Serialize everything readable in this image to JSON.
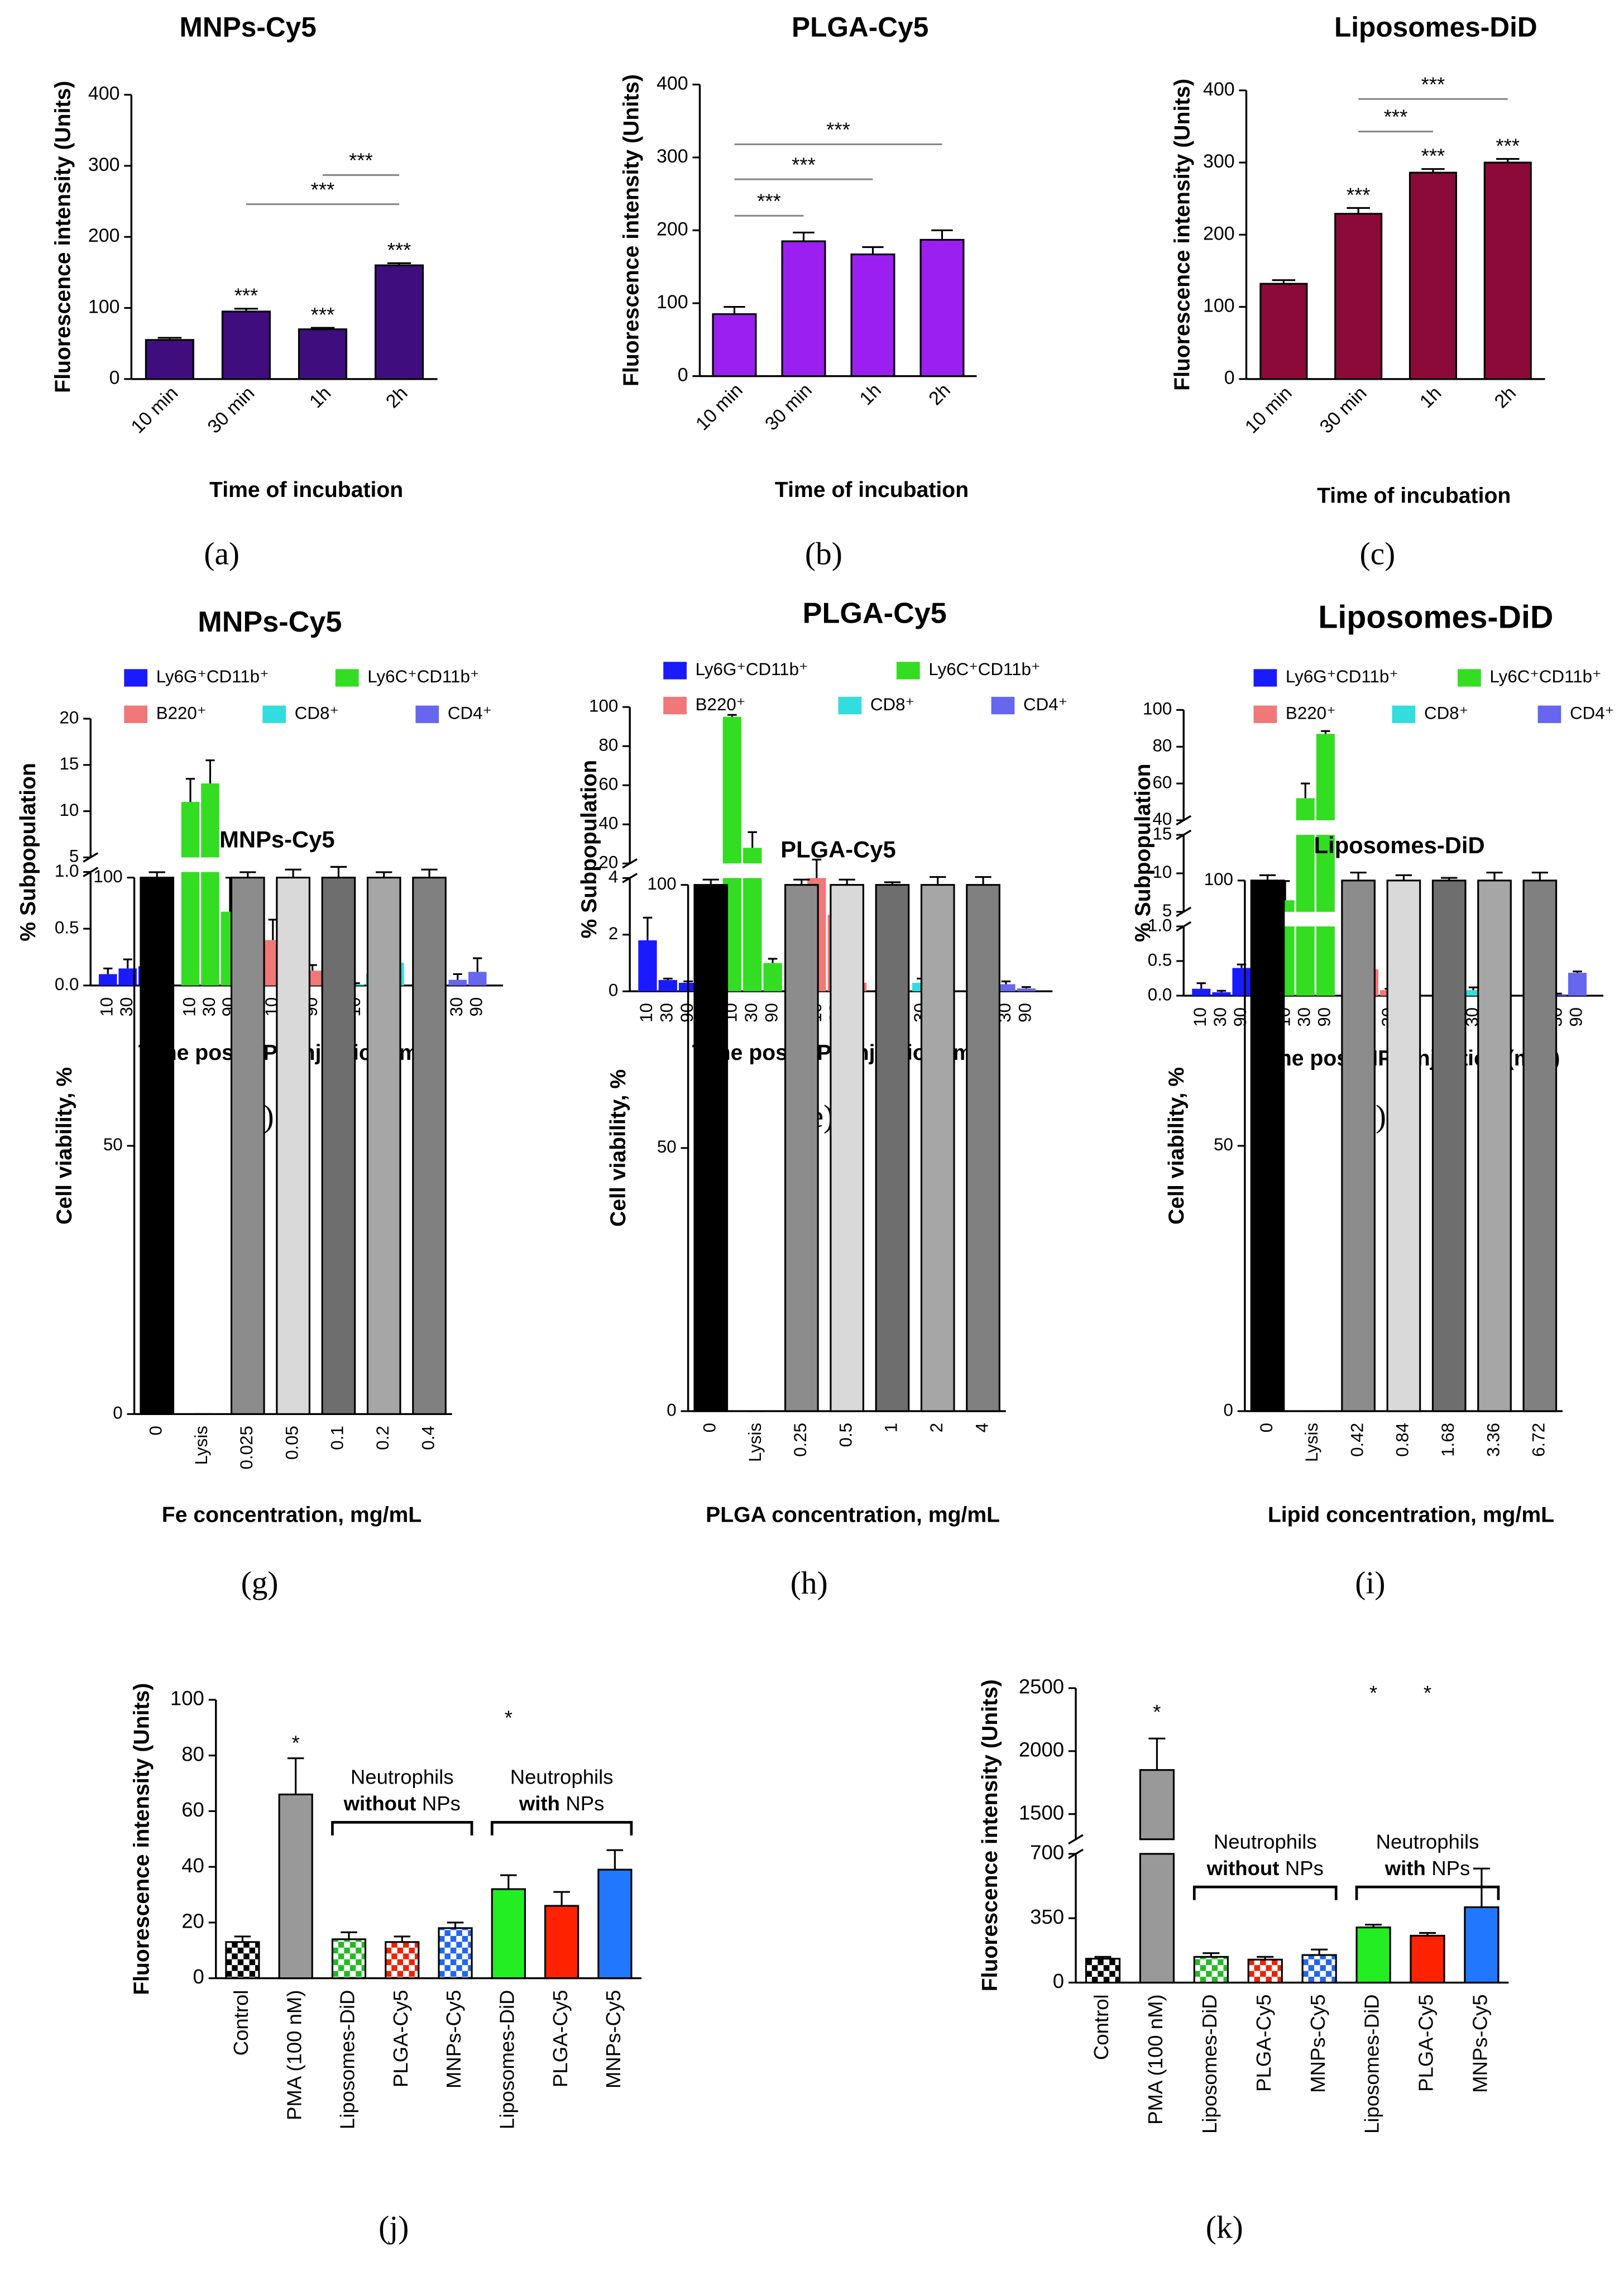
{
  "chart_data": [
    {
      "type": "bar",
      "title": "MNPs-Cy5",
      "ylabel": "Fluorescence intensity (Units)",
      "xlabel": "Time of incubation",
      "panel": "(a)",
      "categories": [
        "10 min",
        "30 min",
        "1h",
        "2h"
      ],
      "values": [
        55,
        95,
        70,
        160
      ],
      "errors": [
        3,
        4,
        2,
        3
      ],
      "color": "#3f0d7e",
      "ylim": [
        0,
        400
      ],
      "yticks": [
        0,
        100,
        200,
        300,
        400
      ],
      "bar_annotations": [
        {
          "text": "***",
          "bar": 1
        },
        {
          "text": "***",
          "bar": 2
        },
        {
          "text": "***",
          "bar": 3
        }
      ],
      "brackets": [
        {
          "text": "***",
          "from": 1,
          "to": 3,
          "y": 246
        },
        {
          "text": "***",
          "from": 2,
          "to": 3,
          "y": 287
        }
      ]
    },
    {
      "type": "bar",
      "title": "PLGA-Cy5",
      "ylabel": "Fluorescence intensity (Units)",
      "xlabel": "Time of incubation",
      "panel": "(b)",
      "categories": [
        "10 min",
        "30 min",
        "1h",
        "2h"
      ],
      "values": [
        85,
        185,
        167,
        187
      ],
      "errors": [
        10,
        12,
        10,
        13
      ],
      "color": "#9b1ff0",
      "ylim": [
        0,
        400
      ],
      "yticks": [
        0,
        100,
        200,
        300,
        400
      ],
      "brackets": [
        {
          "text": "***",
          "from": 0,
          "to": 1,
          "y": 220
        },
        {
          "text": "***",
          "from": 0,
          "to": 2,
          "y": 270
        },
        {
          "text": "***",
          "from": 0,
          "to": 3,
          "y": 318
        }
      ]
    },
    {
      "type": "bar",
      "title": "Liposomes-DiD",
      "ylabel": "Fluorescence intensity (Units)",
      "xlabel": "Time of incubation",
      "panel": "(c)",
      "categories": [
        "10 min",
        "30 min",
        "1h",
        "2h"
      ],
      "values": [
        132,
        229,
        286,
        300
      ],
      "errors": [
        5,
        8,
        5,
        5
      ],
      "color": "#8b0a3a",
      "ylim": [
        0,
        400
      ],
      "yticks": [
        0,
        100,
        200,
        300,
        400
      ],
      "bar_annotations": [
        {
          "text": "***",
          "bar": 1
        },
        {
          "text": "***",
          "bar": 2
        },
        {
          "text": "***",
          "bar": 3
        }
      ],
      "brackets": [
        {
          "text": "***",
          "from": 1,
          "to": 2,
          "y": 343
        },
        {
          "text": "***",
          "from": 1,
          "to": 3,
          "y": 388
        }
      ]
    },
    {
      "type": "bar",
      "title": "MNPs-Cy5",
      "ylabel": "% Subpopulation",
      "xlabel": "Time post NPs injection (min)",
      "panel": "(d)",
      "categories": [
        "10",
        "30",
        "90"
      ],
      "series": [
        {
          "name": "Ly6G⁺CD11b⁺",
          "color": "#1a1aff",
          "values": [
            0.1,
            0.15,
            0.17
          ],
          "errors": [
            0.05,
            0.08,
            0.05
          ]
        },
        {
          "name": "Ly6C⁺CD11b⁺",
          "color": "#33dd22",
          "values": [
            11,
            13,
            0.65
          ],
          "errors": [
            2.5,
            2.5,
            0.3
          ]
        },
        {
          "name": "B220⁺",
          "color": "#f07878",
          "values": [
            0.4,
            0.13,
            0.13
          ],
          "errors": [
            0.18,
            0.05,
            0.05
          ]
        },
        {
          "name": "CD8⁺",
          "color": "#33dddd",
          "values": [
            0.01,
            0.1,
            0.2
          ],
          "errors": [
            0.01,
            0.08,
            0.12
          ]
        },
        {
          "name": "CD4⁺",
          "color": "#6666ee",
          "values": [
            0.01,
            0.05,
            0.12
          ],
          "errors": [
            0.01,
            0.05,
            0.12
          ]
        }
      ],
      "ysegments": [
        {
          "ylim": [
            0,
            1
          ],
          "yticks": [
            {
              "value": 0,
              "label": "0.0"
            },
            {
              "value": 0.5,
              "label": "0.5"
            },
            {
              "value": 1,
              "label": "1.0"
            }
          ]
        },
        {
          "ylim": [
            5,
            20
          ],
          "yticks": [
            5,
            10,
            15,
            20
          ]
        }
      ]
    },
    {
      "type": "bar",
      "title": "PLGA-Cy5",
      "ylabel": "% Subpopulation",
      "xlabel": "Time post NPs injection (min)",
      "panel": "(e)",
      "categories": [
        "10",
        "30",
        "90"
      ],
      "series": [
        {
          "name": "Ly6G⁺CD11b⁺",
          "color": "#1a1aff",
          "values": [
            1.8,
            0.4,
            0.3
          ],
          "errors": [
            0.8,
            0.05,
            0.05
          ]
        },
        {
          "name": "Ly6C⁺CD11b⁺",
          "color": "#33dd22",
          "values": [
            95,
            28,
            1.0
          ],
          "errors": [
            1,
            8,
            0.15
          ]
        },
        {
          "name": "B220⁺",
          "color": "#f07878",
          "values": [
            19,
            2.7,
            0.3
          ],
          "errors": [
            3,
            0.9,
            0.05
          ]
        },
        {
          "name": "CD8⁺",
          "color": "#33dddd",
          "values": [
            0.05,
            0.3,
            0.25
          ],
          "errors": [
            0.02,
            0.15,
            0.1
          ]
        },
        {
          "name": "CD4⁺",
          "color": "#6666ee",
          "values": [
            1.1,
            0.25,
            0.1
          ],
          "errors": [
            0.35,
            0.1,
            0.05
          ]
        }
      ],
      "ysegments": [
        {
          "ylim": [
            0,
            4
          ],
          "yticks": [
            0,
            2,
            4
          ]
        },
        {
          "ylim": [
            20,
            100
          ],
          "yticks": [
            20,
            40,
            60,
            80,
            100
          ]
        }
      ]
    },
    {
      "type": "bar",
      "title": "Liposomes-DiD",
      "ylabel": "% Subpopulation",
      "xlabel": "Time post NPs injection (min)",
      "panel": "(f)",
      "categories": [
        "10",
        "30",
        "90"
      ],
      "series": [
        {
          "name": "Ly6G⁺CD11b⁺",
          "color": "#1a1aff",
          "values": [
            0.1,
            0.05,
            0.4
          ],
          "errors": [
            0.08,
            0.02,
            0.05
          ]
        },
        {
          "name": "Ly6C⁺CD11b⁺",
          "color": "#33dd22",
          "values": [
            6.5,
            52,
            87
          ],
          "errors": [
            2.5,
            8,
            1.5
          ]
        },
        {
          "name": "B220⁺",
          "color": "#f07878",
          "values": [
            0.38,
            0.08,
            0.22
          ],
          "errors": [
            0.06,
            0.02,
            0.06
          ]
        },
        {
          "name": "CD8⁺",
          "color": "#33dddd",
          "values": [
            0.08,
            0.08,
            0.37
          ],
          "errors": [
            0.04,
            0.04,
            0.1
          ]
        },
        {
          "name": "CD4⁺",
          "color": "#6666ee",
          "values": [
            0.05,
            0.02,
            0.33
          ],
          "errors": [
            0.02,
            0.01,
            0.02
          ]
        }
      ],
      "ysegments": [
        {
          "ylim": [
            0,
            1
          ],
          "yticks": [
            {
              "value": 0,
              "label": "0.0"
            },
            {
              "value": 0.5,
              "label": "0.5"
            },
            {
              "value": 1,
              "label": "1.0"
            }
          ]
        },
        {
          "ylim": [
            5,
            15
          ],
          "yticks": [
            5,
            10,
            15
          ]
        },
        {
          "ylim": [
            40,
            100
          ],
          "yticks": [
            40,
            60,
            80,
            100
          ]
        }
      ]
    },
    {
      "type": "bar",
      "title": "MNPs-Cy5",
      "ylabel": "Cell viability, %",
      "xlabel": "Fe concentration, mg/mL",
      "panel": "(g)",
      "categories": [
        "0",
        "Lysis",
        "0.025",
        "0.05",
        "0.1",
        "0.2",
        "0.4"
      ],
      "values": [
        100,
        0,
        100,
        100,
        100,
        100,
        100
      ],
      "errors": [
        1,
        0,
        1,
        1.5,
        2,
        1,
        1.5
      ],
      "colors": [
        "#000000",
        "#ffffff",
        "#8c8c8c",
        "#d9d9d9",
        "#6e6e6e",
        "#a6a6a6",
        "#808080"
      ],
      "ylim": [
        0,
        100
      ],
      "yticks": [
        0,
        50,
        100
      ]
    },
    {
      "type": "bar",
      "title": "PLGA-Cy5",
      "ylabel": "Cell viability, %",
      "xlabel": "PLGA concentration, mg/mL",
      "panel": "(h)",
      "categories": [
        "0",
        "Lysis",
        "0.25",
        "0.5",
        "1",
        "2",
        "4"
      ],
      "values": [
        100,
        0,
        100,
        100,
        100,
        100,
        100
      ],
      "errors": [
        1,
        0,
        1,
        1,
        0.5,
        1.5,
        1.5
      ],
      "colors": [
        "#000000",
        "#ffffff",
        "#8c8c8c",
        "#d9d9d9",
        "#6e6e6e",
        "#a6a6a6",
        "#808080"
      ],
      "ylim": [
        0,
        100
      ],
      "yticks": [
        0,
        50,
        100
      ]
    },
    {
      "type": "bar",
      "title": "Liposomes-DiD",
      "ylabel": "Cell viability, %",
      "xlabel": "Lipid concentration, mg/mL",
      "panel": "(i)",
      "categories": [
        "0",
        "Lysis",
        "0.42",
        "0.84",
        "1.68",
        "3.36",
        "6.72"
      ],
      "values": [
        100,
        0,
        100,
        100,
        100,
        100,
        100
      ],
      "errors": [
        1,
        0,
        1.5,
        1,
        0.5,
        1.5,
        1.5
      ],
      "colors": [
        "#000000",
        "#ffffff",
        "#8c8c8c",
        "#d9d9d9",
        "#6e6e6e",
        "#a6a6a6",
        "#808080"
      ],
      "ylim": [
        0,
        100
      ],
      "yticks": [
        0,
        50,
        100
      ]
    },
    {
      "type": "bar",
      "ylabel": "Fluorescence intensity (Units)",
      "panel": "(j)",
      "categories": [
        "Control",
        "PMA (100 nM)",
        "Liposomes-DiD",
        "PLGA-Cy5",
        "MNPs-Cy5",
        "Liposomes-DiD",
        "PLGA-Cy5",
        "MNPs-Cy5"
      ],
      "values": [
        13,
        66,
        14,
        13,
        18,
        32,
        26,
        39
      ],
      "errors": [
        2,
        13,
        2.5,
        2,
        2,
        5,
        5,
        7
      ],
      "colors": [
        "#000000",
        "#999999",
        "#22bb22",
        "#ee2200",
        "#2266ee",
        "#22ee22",
        "#ff2200",
        "#2277ff"
      ],
      "checkered": [
        true,
        false,
        true,
        true,
        true,
        false,
        false,
        false
      ],
      "ylim": [
        0,
        100
      ],
      "yticks": [
        0,
        20,
        40,
        60,
        80,
        100
      ],
      "bar_annotations": [
        {
          "text": "*",
          "bar": 1,
          "y": 84
        },
        {
          "text": "*",
          "bar": 5,
          "y": 93
        }
      ],
      "groups": [
        {
          "label": "Neutrophils",
          "bold": "without",
          "rest": "NPs",
          "from": 2,
          "to": 4,
          "y": 56
        },
        {
          "label": "Neutrophils",
          "bold": "with",
          "rest": "NPs",
          "from": 5,
          "to": 7,
          "y": 56
        }
      ]
    },
    {
      "type": "bar",
      "ylabel": "Fluorescence intensity (Units)",
      "panel": "(k)",
      "categories": [
        "Control",
        "PMA (100 nM)",
        "Liposomes-DiD",
        "PLGA-Cy5",
        "MNPs-Cy5",
        "Liposomes-DiD",
        "PLGA-Cy5",
        "MNPs-Cy5"
      ],
      "values": [
        130,
        1850,
        140,
        125,
        150,
        300,
        255,
        410
      ],
      "errors": [
        10,
        250,
        20,
        15,
        30,
        15,
        15,
        210
      ],
      "colors": [
        "#000000",
        "#999999",
        "#22bb22",
        "#ee2200",
        "#2266ee",
        "#22ee22",
        "#ff2200",
        "#2277ff"
      ],
      "checkered": [
        true,
        false,
        true,
        true,
        true,
        false,
        false,
        false
      ],
      "ysegments": [
        {
          "ylim": [
            0,
            700
          ],
          "yticks": [
            0,
            350,
            700
          ]
        },
        {
          "ylim": [
            1300,
            2500
          ],
          "yticks": [
            1500,
            2000,
            2500
          ]
        }
      ],
      "bar_annotations": [
        {
          "text": "*",
          "bar": 1,
          "y": 2300
        },
        {
          "text": "*",
          "bar": 5,
          "y": 2450
        },
        {
          "text": "*",
          "bar": 6,
          "y": 2450
        }
      ],
      "groups": [
        {
          "label": "Neutrophils",
          "bold": "without",
          "rest": "NPs",
          "from": 2,
          "to": 4,
          "y": 520
        },
        {
          "label": "Neutrophils",
          "bold": "with",
          "rest": "NPs",
          "from": 5,
          "to": 7,
          "y": 520
        }
      ]
    }
  ]
}
